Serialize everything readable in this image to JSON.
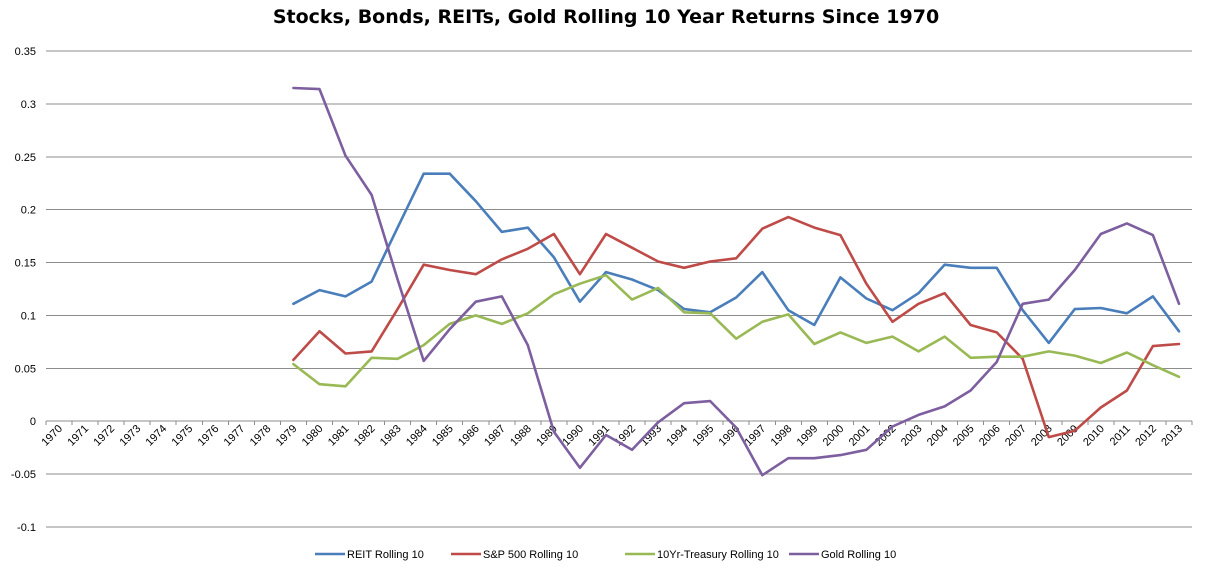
{
  "chart_data": {
    "type": "line",
    "title": "Stocks, Bonds, REITs, Gold Rolling 10 Year Returns Since 1970",
    "xlabel": "",
    "ylabel": "",
    "ylim": [
      -0.1,
      0.35
    ],
    "y_ticks": [
      "-0.1",
      "-0.05",
      "0",
      "0.05",
      "0.1",
      "0.15",
      "0.2",
      "0.25",
      "0.3",
      "0.35"
    ],
    "grid": true,
    "legend_position": "bottom",
    "categories": [
      "1970",
      "1971",
      "1972",
      "1973",
      "1974",
      "1975",
      "1976",
      "1977",
      "1978",
      "1979",
      "1980",
      "1981",
      "1982",
      "1983",
      "1984",
      "1985",
      "1986",
      "1987",
      "1988",
      "1989",
      "1990",
      "1991",
      "1992",
      "1993",
      "1994",
      "1995",
      "1996",
      "1997",
      "1998",
      "1999",
      "2000",
      "2001",
      "2002",
      "2003",
      "2004",
      "2005",
      "2006",
      "2007",
      "2008",
      "2009",
      "2010",
      "2011",
      "2012",
      "2013"
    ],
    "series": [
      {
        "name": "REIT Rolling 10",
        "color": "#4a7ebb",
        "values": [
          null,
          null,
          null,
          null,
          null,
          null,
          null,
          null,
          null,
          0.111,
          0.124,
          0.118,
          0.132,
          0.183,
          0.234,
          0.234,
          0.208,
          0.179,
          0.183,
          0.155,
          0.113,
          0.141,
          0.134,
          0.124,
          0.106,
          0.103,
          0.117,
          0.141,
          0.105,
          0.091,
          0.136,
          0.116,
          0.105,
          0.121,
          0.148,
          0.145,
          0.145,
          0.105,
          0.074,
          0.106,
          0.107,
          0.102,
          0.118,
          0.085
        ]
      },
      {
        "name": "S&P 500 Rolling 10",
        "color": "#be4b48",
        "values": [
          null,
          null,
          null,
          null,
          null,
          null,
          null,
          null,
          null,
          0.058,
          0.085,
          0.064,
          0.066,
          0.106,
          0.148,
          0.143,
          0.139,
          0.153,
          0.163,
          0.177,
          0.139,
          0.177,
          0.164,
          0.151,
          0.145,
          0.151,
          0.154,
          0.182,
          0.193,
          0.183,
          0.176,
          0.13,
          0.094,
          0.111,
          0.121,
          0.091,
          0.084,
          0.059,
          -0.015,
          -0.009,
          0.013,
          0.029,
          0.071,
          0.073
        ]
      },
      {
        "name": "10Yr-Treasury Rolling 10",
        "color": "#98b954",
        "values": [
          null,
          null,
          null,
          null,
          null,
          null,
          null,
          null,
          null,
          0.054,
          0.035,
          0.033,
          0.06,
          0.059,
          0.072,
          0.092,
          0.1,
          0.092,
          0.102,
          0.12,
          0.13,
          0.138,
          0.115,
          0.126,
          0.103,
          0.102,
          0.078,
          0.094,
          0.101,
          0.073,
          0.084,
          0.074,
          0.08,
          0.066,
          0.08,
          0.06,
          0.061,
          0.061,
          0.066,
          0.062,
          0.055,
          0.065,
          0.053,
          0.042
        ]
      },
      {
        "name": "Gold Rolling 10",
        "color": "#7d5fa0",
        "values": [
          null,
          null,
          null,
          null,
          null,
          null,
          null,
          null,
          null,
          0.315,
          0.314,
          0.251,
          0.214,
          0.134,
          0.057,
          0.087,
          0.113,
          0.118,
          0.072,
          -0.01,
          -0.044,
          -0.013,
          -0.027,
          -0.001,
          0.017,
          0.019,
          -0.006,
          -0.051,
          -0.035,
          -0.035,
          -0.032,
          -0.027,
          -0.005,
          0.006,
          0.014,
          0.029,
          0.056,
          0.111,
          0.115,
          0.143,
          0.177,
          0.187,
          0.176,
          0.111
        ]
      }
    ]
  }
}
